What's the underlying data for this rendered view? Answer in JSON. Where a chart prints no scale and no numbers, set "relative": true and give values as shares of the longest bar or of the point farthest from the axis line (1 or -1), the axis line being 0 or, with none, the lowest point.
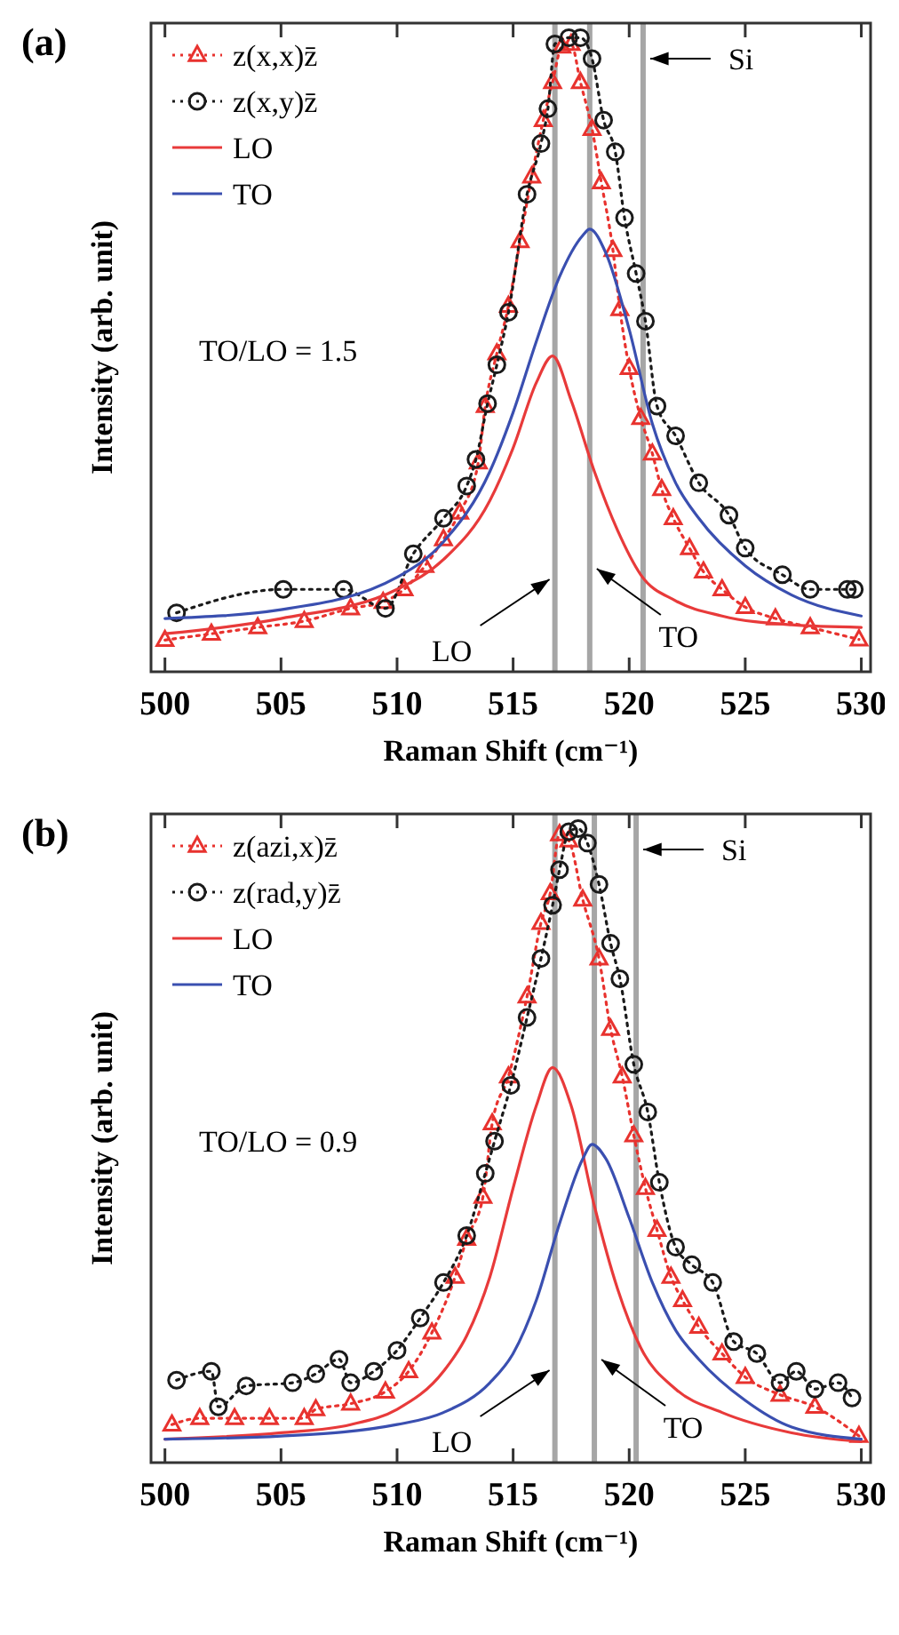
{
  "chart_data": [
    {
      "type": "line",
      "title": "(a)",
      "xlabel": "Raman Shift (cm⁻¹)",
      "ylabel": "Intensity (arb. unit)",
      "relative": true,
      "xlim": [
        499.4,
        530.4
      ],
      "xticks": [
        500,
        505,
        510,
        515,
        520,
        525,
        530
      ],
      "tick_labels": "x",
      "legend": "top left",
      "annotations": [
        "TO/LO = 1.5"
      ],
      "ref_lines": [
        {
          "axis": "x",
          "value": 516.8,
          "label": "LO",
          "color": "#a6a6a6"
        },
        {
          "axis": "x",
          "value": 518.3,
          "label": "TO",
          "color": "#a6a6a6"
        },
        {
          "axis": "x",
          "value": 520.6,
          "label": "Si",
          "color": "#a6a6a6"
        }
      ],
      "series": [
        {
          "name": "z(x,x)z̄",
          "color": "#e8322e",
          "marker": "triangle",
          "line_style": "dotted",
          "x": [
            500,
            502,
            504,
            506,
            508,
            509.4,
            510.3,
            511.2,
            512,
            512.7,
            513.5,
            513.8,
            514.3,
            514.8,
            515.3,
            515.8,
            516.3,
            516.7,
            517.1,
            517.5,
            517.9,
            518.4,
            518.8,
            519.3,
            519.6,
            520,
            520.5,
            521,
            521.4,
            521.9,
            522.6,
            523.2,
            524,
            525,
            526.3,
            527.8,
            529.9
          ],
          "values": [
            0.05,
            0.06,
            0.07,
            0.08,
            0.1,
            0.11,
            0.13,
            0.167,
            0.209,
            0.251,
            0.33,
            0.419,
            0.502,
            0.577,
            0.679,
            0.781,
            0.87,
            0.93,
            0.986,
            0.99,
            0.93,
            0.856,
            0.772,
            0.665,
            0.572,
            0.479,
            0.4,
            0.344,
            0.288,
            0.242,
            0.195,
            0.158,
            0.13,
            0.102,
            0.084,
            0.07,
            0.051
          ]
        },
        {
          "name": "z(x,y)z̄",
          "color": "#1a1a1a",
          "marker": "circle",
          "line_style": "dotted",
          "x": [
            500.5,
            505.1,
            507.7,
            509.5,
            510.7,
            512,
            513,
            513.4,
            513.9,
            514.3,
            514.8,
            515.6,
            516.2,
            516.5,
            516.8,
            517.4,
            517.9,
            518.4,
            518.9,
            519.4,
            519.8,
            520.3,
            520.7,
            521.2,
            522,
            523,
            524.3,
            525,
            526.6,
            527.8,
            529.4,
            529.7
          ],
          "values": [
            0.093,
            0.13,
            0.13,
            0.1,
            0.186,
            0.242,
            0.293,
            0.335,
            0.423,
            0.484,
            0.567,
            0.753,
            0.833,
            0.888,
            0.99,
            1,
            1,
            0.967,
            0.87,
            0.82,
            0.716,
            0.628,
            0.553,
            0.419,
            0.372,
            0.298,
            0.247,
            0.195,
            0.153,
            0.13,
            0.13,
            0.13
          ]
        },
        {
          "name": "LO",
          "color": "#e83a3a",
          "marker": "none",
          "line_style": "solid",
          "x": [
            500,
            505,
            510,
            512,
            514,
            515,
            516,
            516.7,
            517.5,
            518.5,
            519.5,
            520.5,
            522,
            524,
            527,
            530
          ],
          "values": [
            0.06,
            0.084,
            0.13,
            0.177,
            0.27,
            0.353,
            0.456,
            0.498,
            0.428,
            0.316,
            0.223,
            0.153,
            0.112,
            0.088,
            0.074,
            0.07
          ]
        },
        {
          "name": "TO",
          "color": "#3a4fb0",
          "marker": "none",
          "line_style": "solid",
          "x": [
            500,
            505,
            510,
            512,
            514,
            515,
            516,
            517,
            518,
            518.3,
            519,
            520,
            521,
            522,
            523,
            525,
            527,
            530
          ],
          "values": [
            0.084,
            0.098,
            0.149,
            0.205,
            0.316,
            0.409,
            0.521,
            0.623,
            0.688,
            0.698,
            0.66,
            0.54,
            0.391,
            0.298,
            0.242,
            0.167,
            0.121,
            0.088
          ]
        }
      ]
    },
    {
      "type": "line",
      "title": "(b)",
      "xlabel": "Raman Shift (cm⁻¹)",
      "ylabel": "Intensity (arb. unit)",
      "relative": true,
      "xlim": [
        499.4,
        530.4
      ],
      "xticks": [
        500,
        505,
        510,
        515,
        520,
        525,
        530
      ],
      "tick_labels": "x",
      "legend": "top left",
      "annotations": [
        "TO/LO = 0.9"
      ],
      "ref_lines": [
        {
          "axis": "x",
          "value": 516.8,
          "label": "LO",
          "color": "#a6a6a6"
        },
        {
          "axis": "x",
          "value": 518.5,
          "label": "TO",
          "color": "#a6a6a6"
        },
        {
          "axis": "x",
          "value": 520.3,
          "label": "Si",
          "color": "#a6a6a6"
        }
      ],
      "series": [
        {
          "name": "z(azi,x)z̄",
          "color": "#e8322e",
          "marker": "triangle",
          "line_style": "dotted",
          "x": [
            500.3,
            501.5,
            503,
            504.5,
            506,
            506.5,
            508,
            509.5,
            510.5,
            511.5,
            512.5,
            513,
            513.7,
            514.1,
            514.8,
            515.6,
            516.2,
            516.6,
            517,
            517.4,
            518,
            518.7,
            519.2,
            519.7,
            520.2,
            520.7,
            521.2,
            521.8,
            522.3,
            523,
            524,
            525,
            526.5,
            528,
            529.9
          ],
          "values": [
            0.06,
            0.07,
            0.07,
            0.07,
            0.07,
            0.084,
            0.093,
            0.112,
            0.144,
            0.205,
            0.293,
            0.353,
            0.419,
            0.535,
            0.609,
            0.735,
            0.851,
            0.898,
            0.991,
            0.981,
            0.888,
            0.795,
            0.684,
            0.609,
            0.516,
            0.433,
            0.367,
            0.293,
            0.256,
            0.214,
            0.172,
            0.135,
            0.107,
            0.088,
            0.042
          ]
        },
        {
          "name": "z(rad,y)z̄",
          "color": "#1a1a1a",
          "marker": "circle",
          "line_style": "dotted",
          "x": [
            500.5,
            502,
            502.3,
            503.5,
            505.5,
            506.5,
            507.5,
            508,
            509,
            510,
            511,
            512,
            513,
            513.8,
            514.2,
            514.9,
            515.6,
            516.2,
            516.7,
            517,
            517.4,
            517.8,
            518.2,
            518.7,
            519.2,
            519.6,
            520.2,
            520.8,
            521.3,
            522,
            522.7,
            523.6,
            524.5,
            525.5,
            526.5,
            527.2,
            528,
            529,
            529.6
          ],
          "values": [
            0.13,
            0.144,
            0.088,
            0.121,
            0.126,
            0.14,
            0.163,
            0.126,
            0.144,
            0.177,
            0.228,
            0.284,
            0.358,
            0.456,
            0.507,
            0.595,
            0.702,
            0.795,
            0.879,
            0.935,
            0.995,
            1,
            0.977,
            0.912,
            0.819,
            0.763,
            0.628,
            0.553,
            0.442,
            0.34,
            0.312,
            0.284,
            0.191,
            0.172,
            0.126,
            0.144,
            0.116,
            0.126,
            0.102
          ]
        },
        {
          "name": "LO",
          "color": "#e83a3a",
          "marker": "none",
          "line_style": "solid",
          "x": [
            500,
            505,
            508,
            510,
            512,
            513,
            514,
            515,
            516,
            516.7,
            517.5,
            518.5,
            519.5,
            520.5,
            522,
            524,
            527,
            530
          ],
          "values": [
            0.037,
            0.047,
            0.06,
            0.084,
            0.144,
            0.2,
            0.293,
            0.433,
            0.563,
            0.623,
            0.563,
            0.405,
            0.274,
            0.181,
            0.116,
            0.079,
            0.047,
            0.033
          ]
        },
        {
          "name": "TO",
          "color": "#3a4fb0",
          "marker": "none",
          "line_style": "solid",
          "x": [
            500,
            505,
            510,
            512,
            514,
            515,
            516,
            517,
            518,
            518.4,
            519,
            520,
            521,
            522,
            523,
            525,
            527,
            530
          ],
          "values": [
            0.037,
            0.042,
            0.06,
            0.079,
            0.126,
            0.172,
            0.256,
            0.377,
            0.479,
            0.502,
            0.479,
            0.386,
            0.284,
            0.209,
            0.163,
            0.098,
            0.056,
            0.037
          ]
        }
      ]
    }
  ]
}
